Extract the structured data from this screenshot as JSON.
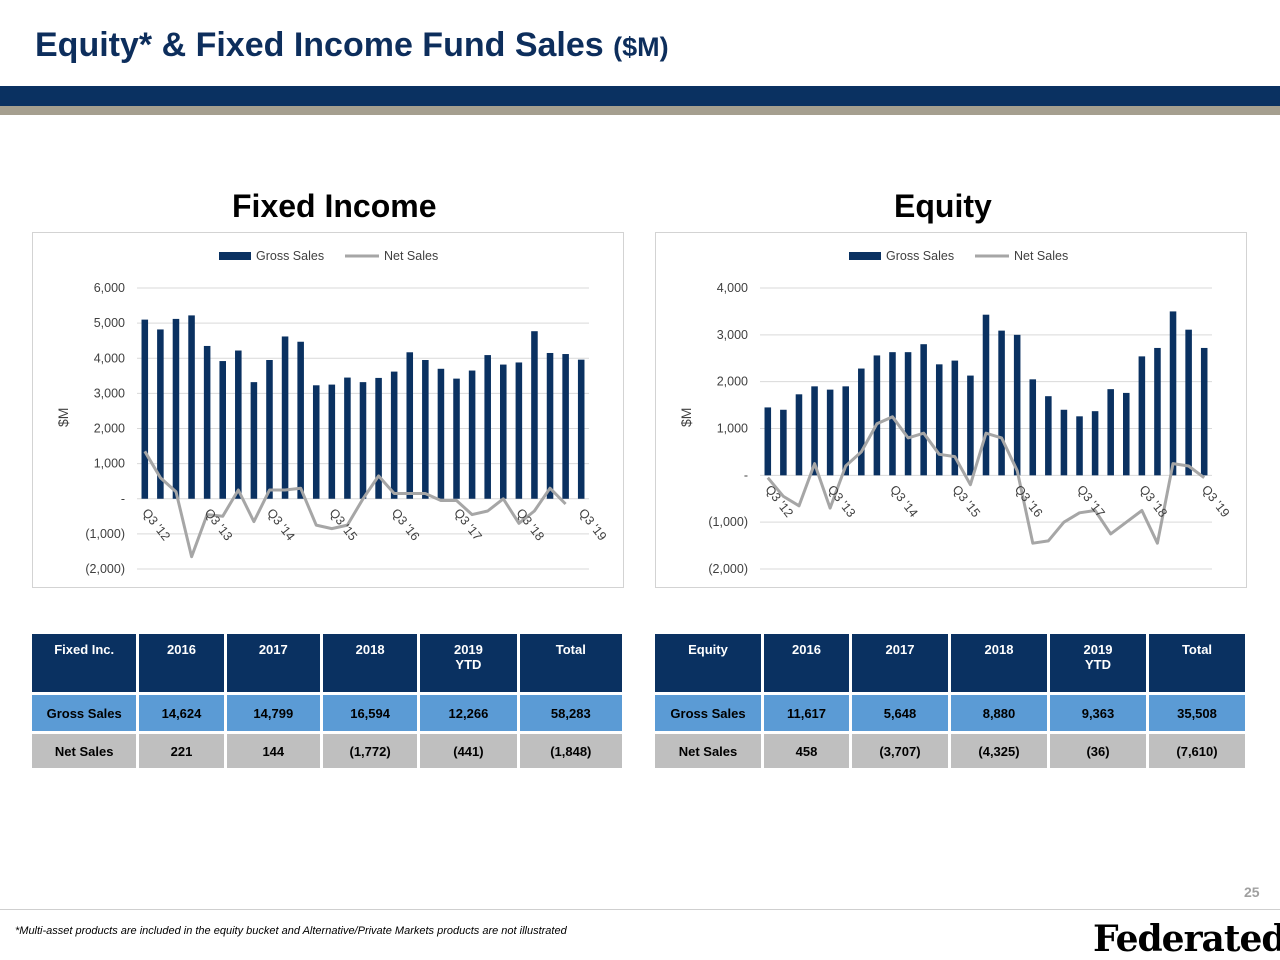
{
  "header": {
    "title": "Equity* & Fixed Income Fund Sales",
    "title_unit": "($M)"
  },
  "colors": {
    "navy": "#0a3161",
    "accent_tan": "#a59f8f",
    "gross_row": "#5b9bd5",
    "net_row": "#bfbfbf",
    "net_line": "#a6a6a6"
  },
  "legend": {
    "gross": "Gross Sales",
    "net": "Net Sales"
  },
  "x_labels": [
    "Q3 '12",
    "Q3 '13",
    "Q3 '14",
    "Q3 '15",
    "Q3 '16",
    "Q3 '17",
    "Q3 '18",
    "Q3 '19"
  ],
  "chart_data": [
    {
      "type": "bar",
      "title": "Fixed Income",
      "ylabel": "$M",
      "ylim": [
        -2000,
        6000
      ],
      "yticks": [
        "(2,000)",
        "(1,000)",
        "-",
        "1,000",
        "2,000",
        "3,000",
        "4,000",
        "5,000",
        "6,000"
      ],
      "ytick_values": [
        -2000,
        -1000,
        0,
        1000,
        2000,
        3000,
        4000,
        5000,
        6000
      ],
      "categories": [
        "Q3 '12",
        "Q4 '12",
        "Q1 '13",
        "Q2 '13",
        "Q3 '13",
        "Q4 '13",
        "Q1 '14",
        "Q2 '14",
        "Q3 '14",
        "Q4 '14",
        "Q1 '15",
        "Q2 '15",
        "Q3 '15",
        "Q4 '15",
        "Q1 '16",
        "Q2 '16",
        "Q3 '16",
        "Q4 '16",
        "Q1 '17",
        "Q2 '17",
        "Q3 '17",
        "Q4 '17",
        "Q1 '18",
        "Q2 '18",
        "Q3 '18",
        "Q4 '18",
        "Q1 '19",
        "Q2 '19",
        "Q3 '19"
      ],
      "series": [
        {
          "name": "Gross Sales",
          "kind": "bar",
          "values": [
            5100,
            4820,
            5120,
            5220,
            4350,
            3920,
            4220,
            3320,
            3950,
            4620,
            4470,
            3230,
            3250,
            3450,
            3320,
            3440,
            3620,
            4170,
            3950,
            3700,
            3420,
            3650,
            4090,
            3820,
            3880,
            4770,
            4150,
            4120,
            3960
          ]
        },
        {
          "name": "Net Sales",
          "kind": "line",
          "values": [
            1350,
            600,
            200,
            -1650,
            -450,
            -500,
            250,
            -650,
            250,
            250,
            300,
            -750,
            -850,
            -750,
            0,
            650,
            150,
            150,
            150,
            -50,
            -50,
            -450,
            -350,
            0,
            -700,
            -350,
            300,
            -150,
            null
          ]
        }
      ]
    },
    {
      "type": "bar",
      "title": "Equity",
      "ylabel": "$M",
      "ylim": [
        -2000,
        4000
      ],
      "yticks": [
        "(2,000)",
        "(1,000)",
        "-",
        "1,000",
        "2,000",
        "3,000",
        "4,000"
      ],
      "ytick_values": [
        -2000,
        -1000,
        0,
        1000,
        2000,
        3000,
        4000
      ],
      "categories": [
        "Q3 '12",
        "Q4 '12",
        "Q1 '13",
        "Q2 '13",
        "Q3 '13",
        "Q4 '13",
        "Q1 '14",
        "Q2 '14",
        "Q3 '14",
        "Q4 '14",
        "Q1 '15",
        "Q2 '15",
        "Q3 '15",
        "Q4 '15",
        "Q1 '16",
        "Q2 '16",
        "Q3 '16",
        "Q4 '16",
        "Q1 '17",
        "Q2 '17",
        "Q3 '17",
        "Q4 '17",
        "Q1 '18",
        "Q2 '18",
        "Q3 '18",
        "Q4 '18",
        "Q1 '19",
        "Q2 '19",
        "Q3 '19"
      ],
      "series": [
        {
          "name": "Gross Sales",
          "kind": "bar",
          "values": [
            1450,
            1400,
            1730,
            1900,
            1830,
            1900,
            2280,
            2560,
            2630,
            2630,
            2800,
            2370,
            2450,
            2130,
            3430,
            3090,
            3000,
            2050,
            1690,
            1400,
            1260,
            1370,
            1840,
            1760,
            2540,
            2720,
            3500,
            3110,
            2720
          ]
        },
        {
          "name": "Net Sales",
          "kind": "line",
          "values": [
            -50,
            -450,
            -650,
            250,
            -700,
            200,
            500,
            1100,
            1250,
            800,
            900,
            450,
            400,
            -200,
            900,
            800,
            100,
            -1450,
            -1400,
            -1000,
            -800,
            -750,
            -1250,
            -1000,
            -750,
            -1450,
            250,
            200,
            -50
          ]
        }
      ]
    }
  ],
  "tables": {
    "fixed": {
      "headers": [
        "Fixed Inc.",
        "2016",
        "2017",
        "2018",
        "2019",
        "Total"
      ],
      "header_sub": "YTD",
      "gross": [
        "Gross Sales",
        "14,624",
        "14,799",
        "16,594",
        "12,266",
        "58,283"
      ],
      "net": [
        "Net Sales",
        "221",
        "144",
        "(1,772)",
        "(441)",
        "(1,848)"
      ]
    },
    "equity": {
      "headers": [
        "Equity",
        "2016",
        "2017",
        "2018",
        "2019",
        "Total"
      ],
      "header_sub": "YTD",
      "gross": [
        "Gross Sales",
        "11,617",
        "5,648",
        "8,880",
        "9,363",
        "35,508"
      ],
      "net": [
        "Net Sales",
        "458",
        "(3,707)",
        "(4,325)",
        "(36)",
        "(7,610)"
      ]
    }
  },
  "footer": {
    "page_number": "25",
    "footnote": "*Multi-asset products are included in the equity bucket and Alternative/Private Markets products are not illustrated",
    "logo_text": "Federated",
    "logo_mark": "®"
  }
}
